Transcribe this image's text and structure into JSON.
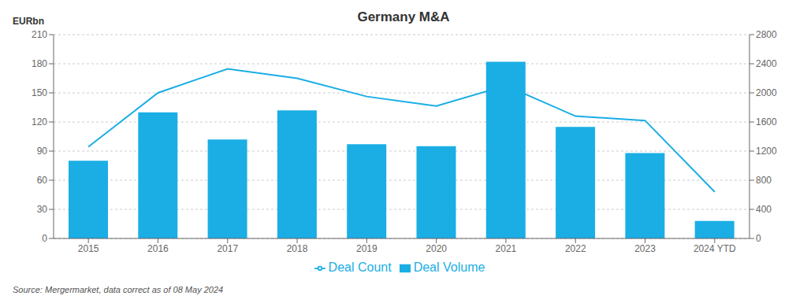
{
  "chart_data": {
    "type": "bar",
    "title": "Germany M&A",
    "categories": [
      "2015",
      "2016",
      "2017",
      "2018",
      "2019",
      "2020",
      "2021",
      "2022",
      "2023",
      "2024 YTD"
    ],
    "series": [
      {
        "name": "Deal Volume",
        "type": "bar",
        "color": "#1aaee5",
        "values": [
          80,
          130,
          102,
          132,
          97,
          95,
          182,
          115,
          88,
          18
        ]
      },
      {
        "name": "Deal Count",
        "type": "line",
        "axis": "y2",
        "color": "#1aaee5",
        "values": [
          1260,
          2000,
          2330,
          2200,
          1950,
          1820,
          2100,
          1680,
          1620,
          640
        ]
      }
    ],
    "ylabel": "EURbn",
    "ylim": [
      0,
      210
    ],
    "yticks": [
      0,
      30,
      60,
      90,
      120,
      150,
      180,
      210
    ],
    "y2lim": [
      0,
      2800
    ],
    "y2ticks": [
      0,
      400,
      800,
      1200,
      1600,
      2000,
      2400,
      2800
    ],
    "grid": true,
    "legend": "bottom",
    "annotations": [
      "Source: Mergermarket, data correct as of 08 May 2024"
    ]
  }
}
